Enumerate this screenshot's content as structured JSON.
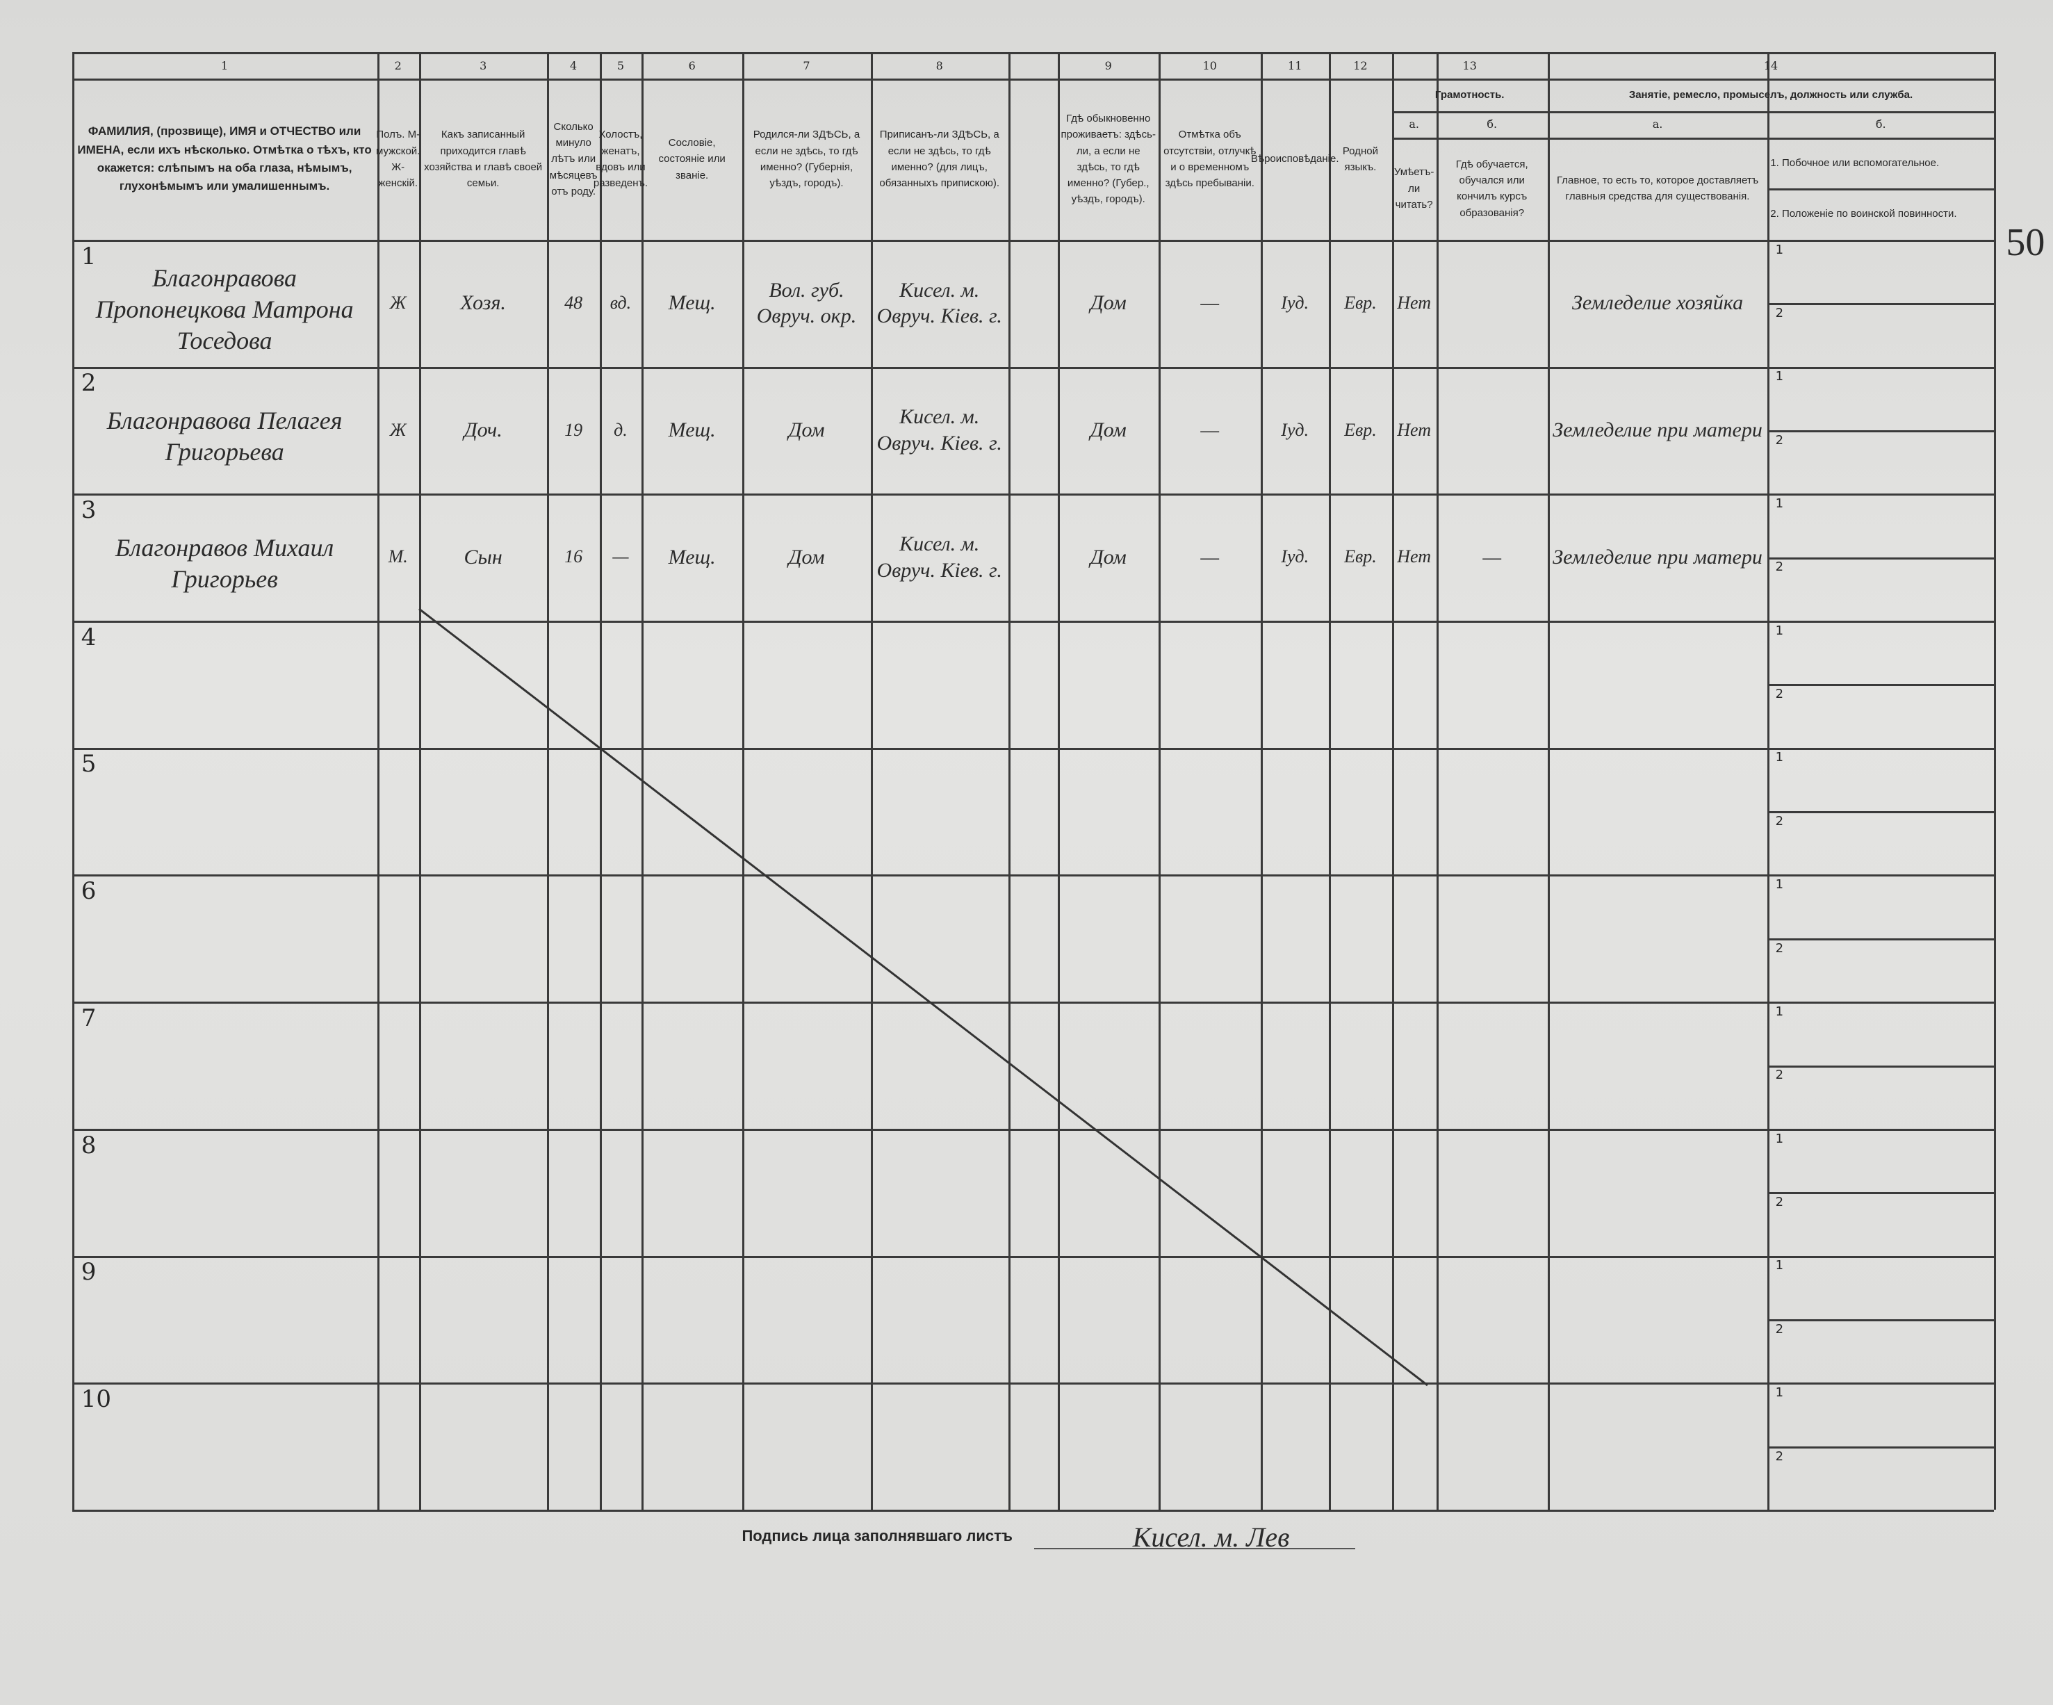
{
  "margin_note": "50",
  "columns": [
    {
      "number": "1",
      "header": "ФАМИЛИЯ, (прозвище), ИМЯ и ОТЧЕСТВО или ИМЕНА, если ихъ нѣсколько. Отмѣтка о тѣхъ, кто окажется: слѣпымъ на оба глаза, нѣмымъ, глухонѣмымъ или умалишеннымъ."
    },
    {
      "number": "2",
      "header": "Полъ. М-мужской. Ж-женскiй."
    },
    {
      "number": "3",
      "header": "Какъ записанный приходится главѣ хозяйства и главѣ своей семьи."
    },
    {
      "number": "4",
      "header": "Сколько минуло лѣтъ или мѣсяцевъ отъ роду."
    },
    {
      "number": "5",
      "header": "Холостъ, женатъ, вдовъ или разведенъ."
    },
    {
      "number": "6",
      "header": "Сословiе, состоянiе или званiе."
    },
    {
      "number": "7",
      "header": "Родился-ли ЗДѢСЬ, а если не здѣсь, то гдѣ именно? (Губернiя, уѣздъ, городъ)."
    },
    {
      "number": "8",
      "header": "Приписанъ-ли ЗДѢСЬ, а если не здѣсь, то гдѣ именно? (для лицъ, обязанныхъ припискою)."
    },
    {
      "number": "9",
      "header": "Гдѣ обыкновенно проживаетъ: здѣсь-ли, а если не здѣсь, то гдѣ именно? (Губер., уѣздъ, городъ)."
    },
    {
      "number": "10",
      "header": "Отмѣтка объ отсутствiи, отлучкѣ и о временномъ здѣсь пребыванiи."
    },
    {
      "number": "11",
      "header": "Вѣроисповѣданiе."
    },
    {
      "number": "12",
      "header": "Родной языкъ."
    },
    {
      "number": "13",
      "header": "Грамотность.",
      "sub": [
        {
          "letter": "а.",
          "header": "Умѣетъ-ли читать?"
        },
        {
          "letter": "б.",
          "header": "Гдѣ обучается, обучался или кончилъ курсъ образованiя?"
        }
      ]
    },
    {
      "number": "14",
      "header": "Занятiе, ремесло, промыселъ, должность или служба.",
      "sub": [
        {
          "letter": "а.",
          "header": "Главное, то есть то, которое доставляетъ главныя средства для существованiя."
        },
        {
          "letter": "б.",
          "items": [
            "1. Побочное или вспомогательное.",
            "2. Положенiе по воинской повинности."
          ]
        }
      ]
    }
  ],
  "rows": [
    {
      "number": "1",
      "cells": [
        "Благонравова Пропонецкова Матрона Тоседова",
        "Ж",
        "Хозя.",
        "48",
        "вд.",
        "Мещ.",
        "Вол. губ. Овруч. окр.",
        "Кисел. м. Овруч. Кiев. г.",
        "Дом",
        "—",
        "Iуд.",
        "Евр.",
        "Нет",
        null,
        "Земледелие хозяйка"
      ],
      "subrows": [
        "1",
        "2"
      ]
    },
    {
      "number": "2",
      "cells": [
        "Благонравова Пелагея Григорьева",
        "Ж",
        "Доч.",
        "19",
        "д.",
        "Мещ.",
        "Дом",
        "Кисел. м. Овруч. Кiев. г.",
        "Дом",
        "—",
        "Iуд.",
        "Евр.",
        "Нет",
        null,
        "Земледелие при матери"
      ],
      "subrows": [
        "1",
        "2"
      ]
    },
    {
      "number": "3",
      "cells": [
        "Благонравов Михаил Григорьев",
        "М.",
        "Сын",
        "16",
        "—",
        "Мещ.",
        "Дом",
        "Кисел. м. Овруч. Кiев. г.",
        "Дом",
        "—",
        "Iуд.",
        "Евр.",
        "Нет",
        "—",
        "Земледелие при матери"
      ],
      "subrows": [
        "1",
        "2"
      ]
    },
    {
      "number": "4",
      "subrows": [
        "1",
        "2"
      ]
    },
    {
      "number": "5",
      "subrows": [
        "1",
        "2"
      ]
    },
    {
      "number": "6",
      "subrows": [
        "1",
        "2"
      ]
    },
    {
      "number": "7",
      "subrows": [
        "1",
        "2"
      ]
    },
    {
      "number": "8",
      "subrows": [
        "1",
        "2"
      ]
    },
    {
      "number": "9",
      "subrows": [
        "1",
        "2"
      ]
    },
    {
      "number": "10",
      "subrows": [
        "1",
        "2"
      ]
    }
  ],
  "signature": {
    "label": "Подпись лица заполнявшаго листъ",
    "value": "Кисел. м. Лев"
  }
}
